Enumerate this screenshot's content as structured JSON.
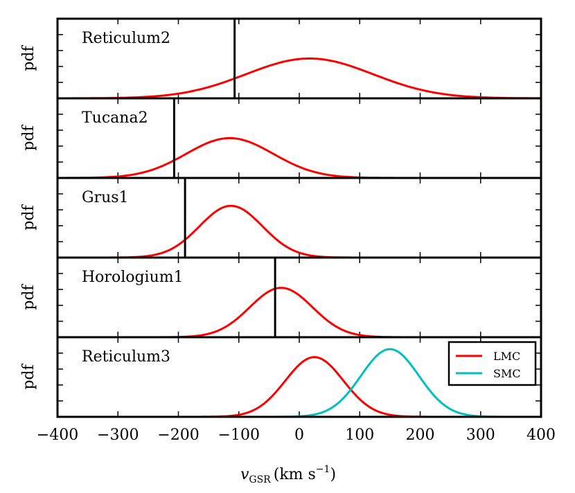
{
  "chart_data": {
    "type": "line",
    "x_axis": {
      "label_var": "v",
      "label_sub": "GSR",
      "label_units": "(km s",
      "label_sup": "−1",
      "label_close": ")",
      "xlim": [
        -400,
        400
      ],
      "ticks": [
        -400,
        -300,
        -200,
        -100,
        0,
        100,
        200,
        300,
        400
      ],
      "tick_labels": [
        "−400",
        "−300",
        "−200",
        "−100",
        "0",
        "100",
        "200",
        "300",
        "400"
      ]
    },
    "panels": [
      {
        "name": "Reticulum2",
        "ylabel": "pdf",
        "observed_velocity": -107,
        "series": [
          {
            "name": "LMC",
            "color": "#ff0000",
            "mean": 17,
            "sigma": 105,
            "peak": 0.5
          }
        ]
      },
      {
        "name": "Tucana2",
        "ylabel": "pdf",
        "observed_velocity": -207,
        "series": [
          {
            "name": "LMC",
            "color": "#ff0000",
            "mean": -115,
            "sigma": 72,
            "peak": 0.5
          }
        ]
      },
      {
        "name": "Grus1",
        "ylabel": "pdf",
        "observed_velocity": -189,
        "series": [
          {
            "name": "LMC",
            "color": "#ff0000",
            "mean": -113,
            "sigma": 52,
            "peak": 0.65
          }
        ]
      },
      {
        "name": "Horologium1",
        "ylabel": "pdf",
        "observed_velocity": -40,
        "series": [
          {
            "name": "LMC",
            "color": "#ff0000",
            "mean": -30,
            "sigma": 52,
            "peak": 0.62
          }
        ]
      },
      {
        "name": "Reticulum3",
        "ylabel": "pdf",
        "observed_velocity": null,
        "series": [
          {
            "name": "LMC",
            "color": "#ff0000",
            "mean": 25,
            "sigma": 48,
            "peak": 0.75
          },
          {
            "name": "SMC",
            "color": "#00bfbf",
            "mean": 150,
            "sigma": 48,
            "peak": 0.85
          }
        ]
      }
    ],
    "legend": {
      "panel": "Reticulum3",
      "location": "top-right",
      "entries": [
        {
          "label": "LMC",
          "color": "#ff0000"
        },
        {
          "label": "SMC",
          "color": "#00bfbf"
        }
      ]
    }
  }
}
